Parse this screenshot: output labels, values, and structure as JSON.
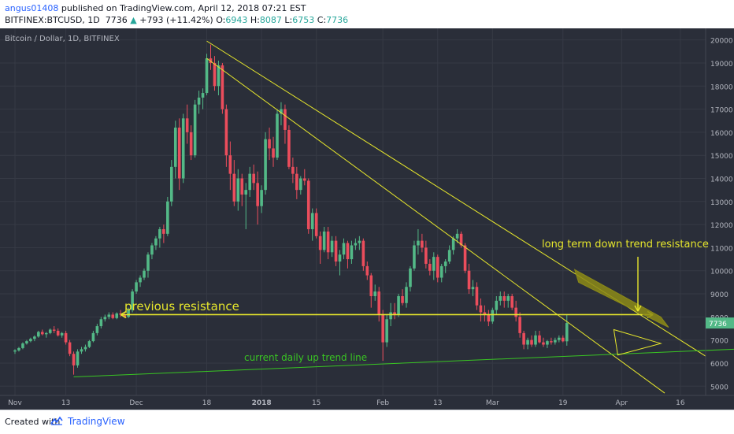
{
  "header": {
    "username": "angus01408",
    "published_text": "published on TradingView.com, April 12, 2018 07:21 EST",
    "ticker": "BITFINEX:BTCUSD, 1D",
    "last": "7736",
    "change": "+793 (+11.42%)",
    "open_label": "O:",
    "open": "6943",
    "high_label": "H:",
    "high": "8087",
    "low_label": "L:",
    "low": "6753",
    "close_label": "C:",
    "close": "7736"
  },
  "chart_data": {
    "type": "candlestick",
    "title": "Bitcoin / Dollar, 1D, BITFINEX",
    "ylim": [
      4600,
      20500
    ],
    "y_ticks": [
      5000,
      6000,
      7000,
      8000,
      9000,
      10000,
      11000,
      12000,
      13000,
      14000,
      15000,
      16000,
      17000,
      18000,
      19000,
      20000
    ],
    "x_ticks": [
      "Nov",
      "13",
      "Dec",
      "18",
      "2018",
      "15",
      "Feb",
      "13",
      "Mar",
      "19",
      "Apr",
      "16"
    ],
    "last_price": "7736",
    "colors": {
      "background": "#2a2e39",
      "up": "#53b987",
      "down": "#eb4d5c",
      "trendline": "#e6e62c",
      "support": "#39c523",
      "grid": "#363a45",
      "axis_text": "#b2b5be"
    },
    "candles": [
      [
        6500,
        6600,
        6400,
        6550
      ],
      [
        6550,
        6700,
        6500,
        6650
      ],
      [
        6650,
        6900,
        6600,
        6850
      ],
      [
        6850,
        7000,
        6800,
        6950
      ],
      [
        6950,
        7100,
        6900,
        7050
      ],
      [
        7050,
        7200,
        6950,
        7150
      ],
      [
        7150,
        7400,
        7100,
        7350
      ],
      [
        7350,
        7450,
        7200,
        7250
      ],
      [
        7250,
        7350,
        7100,
        7300
      ],
      [
        7300,
        7500,
        7250,
        7450
      ],
      [
        7450,
        7600,
        7300,
        7400
      ],
      [
        7400,
        7500,
        7150,
        7200
      ],
      [
        7200,
        7350,
        7100,
        7300
      ],
      [
        7300,
        7400,
        6800,
        6900
      ],
      [
        6900,
        7000,
        6300,
        6400
      ],
      [
        6400,
        6500,
        5500,
        5900
      ],
      [
        5900,
        6600,
        5800,
        6500
      ],
      [
        6500,
        6700,
        6400,
        6600
      ],
      [
        6600,
        6800,
        6500,
        6700
      ],
      [
        6700,
        7000,
        6650,
        6950
      ],
      [
        6950,
        7400,
        6900,
        7300
      ],
      [
        7300,
        7700,
        7200,
        7600
      ],
      [
        7600,
        8000,
        7500,
        7900
      ],
      [
        7900,
        8100,
        7800,
        8000
      ],
      [
        8000,
        8200,
        7900,
        8100
      ],
      [
        8100,
        8200,
        7900,
        7950
      ],
      [
        7950,
        8200,
        7900,
        8150
      ],
      [
        8150,
        8300,
        8000,
        8100
      ],
      [
        8100,
        8200,
        7950,
        8000
      ],
      [
        8000,
        8400,
        7950,
        8300
      ],
      [
        8300,
        9200,
        8200,
        9100
      ],
      [
        9100,
        9600,
        9000,
        9500
      ],
      [
        9500,
        9800,
        9300,
        9700
      ],
      [
        9700,
        10100,
        9600,
        10000
      ],
      [
        10000,
        10800,
        9700,
        10700
      ],
      [
        10700,
        11200,
        10500,
        11100
      ],
      [
        11100,
        11500,
        10900,
        11400
      ],
      [
        11400,
        11900,
        11000,
        11800
      ],
      [
        11800,
        12000,
        11200,
        11600
      ],
      [
        11600,
        13200,
        11500,
        13000
      ],
      [
        13000,
        14800,
        12800,
        14500
      ],
      [
        14500,
        16500,
        14000,
        16200
      ],
      [
        16200,
        16600,
        13500,
        14000
      ],
      [
        14000,
        16800,
        13800,
        16600
      ],
      [
        16600,
        17200,
        15500,
        16000
      ],
      [
        16000,
        16300,
        14800,
        15000
      ],
      [
        15000,
        17400,
        14900,
        17200
      ],
      [
        17200,
        17800,
        16800,
        17500
      ],
      [
        17500,
        17900,
        17000,
        17700
      ],
      [
        17700,
        19400,
        17600,
        19200
      ],
      [
        19200,
        19800,
        18700,
        19000
      ],
      [
        19000,
        19300,
        17800,
        18000
      ],
      [
        18000,
        19100,
        17600,
        18900
      ],
      [
        18900,
        19000,
        16800,
        17000
      ],
      [
        17000,
        17200,
        14500,
        15000
      ],
      [
        15000,
        15600,
        13500,
        14200
      ],
      [
        14200,
        14800,
        12800,
        13000
      ],
      [
        13000,
        14400,
        12600,
        14000
      ],
      [
        14000,
        14200,
        12800,
        13300
      ],
      [
        13300,
        13800,
        11800,
        13500
      ],
      [
        13500,
        14500,
        13200,
        14200
      ],
      [
        14200,
        14600,
        13500,
        13800
      ],
      [
        13800,
        14300,
        12000,
        12800
      ],
      [
        12800,
        13700,
        12500,
        13500
      ],
      [
        13500,
        16000,
        13300,
        15700
      ],
      [
        15700,
        16200,
        14800,
        15300
      ],
      [
        15300,
        15800,
        14500,
        14900
      ],
      [
        14900,
        17000,
        14800,
        16800
      ],
      [
        16800,
        17300,
        16300,
        17000
      ],
      [
        17000,
        17200,
        15500,
        16100
      ],
      [
        16100,
        16300,
        14400,
        14500
      ],
      [
        14500,
        14900,
        13800,
        14200
      ],
      [
        14200,
        14500,
        13100,
        13500
      ],
      [
        13500,
        14100,
        13300,
        14000
      ],
      [
        14000,
        14400,
        13700,
        13900
      ],
      [
        13900,
        14000,
        11600,
        11800
      ],
      [
        11800,
        12700,
        11300,
        12500
      ],
      [
        12500,
        12700,
        11400,
        11500
      ],
      [
        11500,
        11700,
        10300,
        10900
      ],
      [
        10900,
        11900,
        10800,
        11700
      ],
      [
        11700,
        11900,
        10500,
        10800
      ],
      [
        10800,
        11500,
        10600,
        11300
      ],
      [
        11300,
        11500,
        10200,
        10400
      ],
      [
        10400,
        10900,
        9800,
        10700
      ],
      [
        10700,
        11400,
        10500,
        11200
      ],
      [
        11200,
        11300,
        10100,
        10500
      ],
      [
        10500,
        11300,
        10300,
        11100
      ],
      [
        11100,
        11400,
        10900,
        11200
      ],
      [
        11200,
        11500,
        10900,
        11300
      ],
      [
        11300,
        11400,
        10000,
        10200
      ],
      [
        10200,
        10400,
        9600,
        9800
      ],
      [
        9800,
        9900,
        8400,
        8900
      ],
      [
        8900,
        9400,
        8700,
        9100
      ],
      [
        9100,
        9300,
        7800,
        8100
      ],
      [
        8100,
        8300,
        6100,
        6900
      ],
      [
        6900,
        8100,
        6700,
        7900
      ],
      [
        7900,
        8600,
        7600,
        8200
      ],
      [
        8200,
        8600,
        7900,
        8100
      ],
      [
        8100,
        9000,
        8000,
        8900
      ],
      [
        8900,
        9200,
        8500,
        8600
      ],
      [
        8600,
        9500,
        8400,
        9300
      ],
      [
        9300,
        10200,
        9100,
        10100
      ],
      [
        10100,
        11300,
        10000,
        11100
      ],
      [
        11100,
        11800,
        10700,
        11300
      ],
      [
        11300,
        11600,
        10800,
        11000
      ],
      [
        11000,
        11300,
        10100,
        10300
      ],
      [
        10300,
        10500,
        9800,
        10000
      ],
      [
        10000,
        10800,
        9600,
        10600
      ],
      [
        10600,
        10700,
        9500,
        9700
      ],
      [
        9700,
        10300,
        9500,
        10200
      ],
      [
        10200,
        10500,
        9900,
        10400
      ],
      [
        10400,
        11100,
        10300,
        10900
      ],
      [
        10900,
        11500,
        10700,
        11400
      ],
      [
        11400,
        11800,
        11200,
        11600
      ],
      [
        11600,
        11700,
        11000,
        11100
      ],
      [
        11100,
        11200,
        9900,
        10000
      ],
      [
        10000,
        10300,
        9000,
        9200
      ],
      [
        9200,
        9600,
        8900,
        9300
      ],
      [
        9300,
        9500,
        8300,
        8500
      ],
      [
        8500,
        8800,
        7800,
        8200
      ],
      [
        8200,
        8500,
        7800,
        8100
      ],
      [
        8100,
        8300,
        7600,
        7800
      ],
      [
        7800,
        8400,
        7700,
        8300
      ],
      [
        8300,
        8900,
        8100,
        8700
      ],
      [
        8700,
        9100,
        8500,
        8900
      ],
      [
        8900,
        9100,
        8400,
        8700
      ],
      [
        8700,
        9000,
        8400,
        8900
      ],
      [
        8900,
        9000,
        8300,
        8400
      ],
      [
        8400,
        8700,
        7800,
        8000
      ],
      [
        8000,
        8200,
        7100,
        7300
      ],
      [
        7300,
        7400,
        6600,
        6800
      ],
      [
        6800,
        7100,
        6600,
        7000
      ],
      [
        7000,
        7200,
        6700,
        6800
      ],
      [
        6800,
        7400,
        6700,
        7200
      ],
      [
        7200,
        7400,
        6850,
        6900
      ],
      [
        6900,
        7100,
        6700,
        6800
      ],
      [
        6800,
        7000,
        6650,
        6950
      ],
      [
        6950,
        7100,
        6800,
        6900
      ],
      [
        6900,
        7100,
        6800,
        7000
      ],
      [
        7000,
        7200,
        6900,
        7100
      ],
      [
        7100,
        7200,
        6900,
        6943
      ],
      [
        6943,
        8087,
        6753,
        7736
      ]
    ],
    "annotations": [
      "long term down trend resistance",
      "previous resistance",
      "current daily up trend line"
    ]
  },
  "footer": {
    "created_with": "Created with",
    "brand": "TradingView"
  }
}
